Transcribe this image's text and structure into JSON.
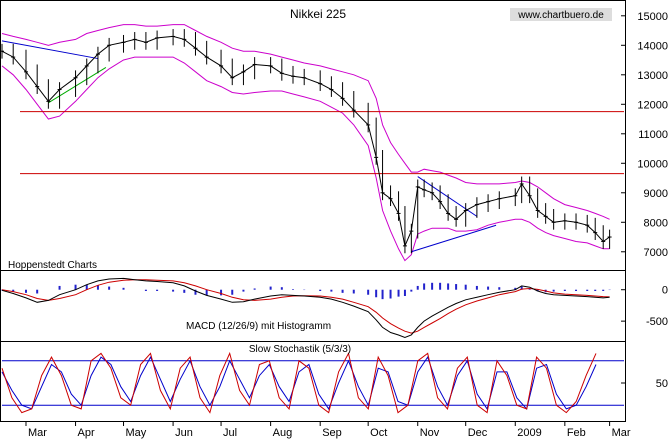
{
  "colors": {
    "price": "#000000",
    "bollinger": "#cc00cc",
    "support_line": "#cc0000",
    "trend_blue": "#0000cc",
    "trend_green": "#00aa00",
    "macd_line": "#000000",
    "macd_signal": "#cc0000",
    "macd_hist": "#2222cc",
    "stoch_k": "#cc0000",
    "stoch_d": "#0000cc",
    "stoch_bands": "#0000cc",
    "panel_border": "#000000"
  },
  "chart_data": [
    {
      "type": "line",
      "title": "Nikkei 225",
      "source": "www.chartbuero.de",
      "annotation": "Hoppenstedt Charts",
      "y_ticks": [
        7000,
        8000,
        9000,
        10000,
        11000,
        12000,
        13000,
        14000,
        15000
      ],
      "y_tick_labels": [
        "7000",
        "8000",
        "9000",
        "10000",
        "11000",
        "12000",
        "13000",
        "14000",
        "15000"
      ],
      "ylim": [
        6450,
        15400
      ],
      "x_tick_labels": [
        "Mar",
        "Apr",
        "May",
        "Jun",
        "Jul",
        "Aug",
        "Sep",
        "Oct",
        "Nov",
        "Dec",
        "2009",
        "Feb",
        "Mar"
      ],
      "x_tick_dates": [
        "2008-03-01",
        "2008-04-01",
        "2008-05-01",
        "2008-06-01",
        "2008-07-01",
        "2008-08-01",
        "2008-09-01",
        "2008-10-01",
        "2008-11-01",
        "2008-12-01",
        "2009-01-01",
        "2009-02-01",
        "2009-03-01"
      ],
      "xlim": [
        "2008-02-15",
        "2009-03-10"
      ],
      "grid": false,
      "series": [
        {
          "x": [
            "2008-02-15",
            "2008-02-22",
            "2008-03-01",
            "2008-03-08",
            "2008-03-15",
            "2008-03-22",
            "2008-04-01",
            "2008-04-08",
            "2008-04-15",
            "2008-04-22",
            "2008-05-01",
            "2008-05-08",
            "2008-05-15",
            "2008-05-22",
            "2008-06-01",
            "2008-06-08",
            "2008-06-15",
            "2008-06-22",
            "2008-07-01",
            "2008-07-08",
            "2008-07-15",
            "2008-07-22",
            "2008-08-01",
            "2008-08-08",
            "2008-08-15",
            "2008-08-22",
            "2008-09-01",
            "2008-09-08",
            "2008-09-15",
            "2008-09-22",
            "2008-10-01",
            "2008-10-06",
            "2008-10-10",
            "2008-10-15",
            "2008-10-20",
            "2008-10-24",
            "2008-10-28",
            "2008-11-01",
            "2008-11-05",
            "2008-11-10",
            "2008-11-15",
            "2008-11-20",
            "2008-11-25",
            "2008-12-01",
            "2008-12-08",
            "2008-12-15",
            "2008-12-22",
            "2009-01-01",
            "2009-01-05",
            "2009-01-10",
            "2009-01-15",
            "2009-01-20",
            "2009-01-25",
            "2009-02-01",
            "2009-02-08",
            "2009-02-15",
            "2009-02-20",
            "2009-02-25",
            "2009-03-01"
          ],
          "values": [
            13800,
            13600,
            13100,
            12600,
            12100,
            12500,
            12900,
            13300,
            13700,
            14000,
            14100,
            14200,
            14100,
            14250,
            14300,
            14200,
            13900,
            13600,
            13300,
            12900,
            13100,
            13350,
            13300,
            13050,
            12950,
            12900,
            12700,
            12500,
            12200,
            11800,
            11300,
            10200,
            9000,
            8800,
            8300,
            7200,
            7700,
            9200,
            9100,
            9000,
            8700,
            8300,
            8100,
            8400,
            8600,
            8700,
            8800,
            8900,
            9300,
            8900,
            8400,
            8200,
            8000,
            8050,
            8000,
            7900,
            7650,
            7350,
            7500
          ]
        }
      ],
      "bollinger_upper": [
        14400,
        14300,
        14200,
        14100,
        14000,
        14100,
        14200,
        14400,
        14500,
        14600,
        14700,
        14700,
        14650,
        14650,
        14700,
        14700,
        14500,
        14300,
        14100,
        13900,
        13800,
        13800,
        13700,
        13600,
        13500,
        13400,
        13300,
        13200,
        13100,
        13000,
        12800,
        12200,
        11300,
        10700,
        10300,
        10000,
        9700,
        9700,
        9800,
        9750,
        9700,
        9600,
        9500,
        9350,
        9300,
        9300,
        9300,
        9350,
        9400,
        9350,
        9200,
        9000,
        8800,
        8600,
        8500,
        8400,
        8300,
        8200,
        8100
      ],
      "bollinger_lower": [
        13300,
        13000,
        12500,
        12000,
        11500,
        11600,
        12100,
        12500,
        12900,
        13200,
        13500,
        13600,
        13600,
        13600,
        13600,
        13400,
        13100,
        12800,
        12600,
        12400,
        12350,
        12400,
        12450,
        12450,
        12350,
        12250,
        12100,
        11900,
        11700,
        11300,
        10600,
        9500,
        8400,
        7700,
        7100,
        6700,
        6900,
        7600,
        7700,
        7800,
        7800,
        7800,
        7700,
        7700,
        7750,
        7900,
        8000,
        8100,
        8100,
        8000,
        7800,
        7650,
        7550,
        7450,
        7350,
        7300,
        7200,
        7100,
        7100
      ],
      "lines": [
        {
          "name": "support-12000",
          "type": "horizontal",
          "value": 11750
        },
        {
          "name": "resistance-9600",
          "type": "horizontal",
          "value": 9650
        }
      ],
      "trendlines": [
        {
          "name": "down-trend",
          "color": "blue",
          "points": [
            [
              "2008-02-15",
              14150
            ],
            [
              "2008-04-15",
              13550
            ]
          ]
        },
        {
          "name": "up-trend",
          "color": "green",
          "points": [
            [
              "2008-03-15",
              12050
            ],
            [
              "2008-04-20",
              13250
            ]
          ]
        },
        {
          "name": "triangle-upper",
          "color": "blue",
          "points": [
            [
              "2008-11-01",
              9550
            ],
            [
              "2008-12-08",
              8200
            ]
          ]
        },
        {
          "name": "triangle-lower",
          "color": "blue",
          "points": [
            [
              "2008-10-28",
              7000
            ],
            [
              "2008-12-20",
              7900
            ]
          ]
        }
      ]
    },
    {
      "type": "line",
      "title": "MACD (12/26/9) mit Histogramm",
      "y_ticks": [
        0,
        -500
      ],
      "y_tick_labels": [
        "0",
        "-500"
      ],
      "ylim": [
        -800,
        250
      ],
      "series": [
        {
          "name": "macd",
          "values": [
            -10,
            -60,
            -130,
            -200,
            -170,
            -80,
            0,
            80,
            140,
            170,
            180,
            160,
            140,
            130,
            110,
            60,
            -20,
            -90,
            -150,
            -200,
            -190,
            -150,
            -100,
            -80,
            -90,
            -100,
            -120,
            -150,
            -200,
            -260,
            -350,
            -480,
            -600,
            -680,
            -720,
            -760,
            -720,
            -600,
            -500,
            -420,
            -350,
            -280,
            -220,
            -160,
            -120,
            -80,
            -40,
            0,
            60,
            40,
            -20,
            -60,
            -80,
            -90,
            -100,
            -110,
            -120,
            -130,
            -120
          ]
        },
        {
          "name": "signal",
          "values": [
            0,
            -30,
            -80,
            -140,
            -170,
            -140,
            -80,
            0,
            70,
            120,
            150,
            160,
            160,
            150,
            140,
            110,
            60,
            0,
            -60,
            -120,
            -160,
            -170,
            -150,
            -120,
            -100,
            -95,
            -100,
            -120,
            -150,
            -200,
            -270,
            -360,
            -450,
            -540,
            -610,
            -660,
            -690,
            -660,
            -600,
            -530,
            -460,
            -380,
            -310,
            -240,
            -180,
            -130,
            -80,
            -30,
            10,
            20,
            5,
            -20,
            -50,
            -70,
            -80,
            -90,
            -100,
            -110,
            -115
          ]
        },
        {
          "name": "histogram",
          "values": [
            -10,
            -30,
            -50,
            -60,
            0,
            60,
            80,
            80,
            70,
            50,
            30,
            0,
            -20,
            -20,
            -30,
            -50,
            -80,
            -90,
            -90,
            -80,
            -30,
            20,
            50,
            40,
            10,
            -5,
            -20,
            -30,
            -50,
            -60,
            -80,
            -120,
            -150,
            -140,
            -110,
            -100,
            -30,
            60,
            100,
            110,
            110,
            100,
            90,
            80,
            60,
            50,
            40,
            30,
            50,
            20,
            -25,
            -40,
            -30,
            -20,
            -20,
            -20,
            -20,
            -20,
            -5
          ]
        }
      ]
    },
    {
      "type": "line",
      "title": "Slow Stochastik (5/3/3)",
      "y_ticks": [
        50
      ],
      "y_tick_labels": [
        "50"
      ],
      "ylim": [
        0,
        100
      ],
      "bands": [
        80,
        20
      ],
      "series": [
        {
          "name": "%K",
          "values": [
            70,
            30,
            10,
            15,
            60,
            85,
            60,
            20,
            15,
            80,
            90,
            70,
            30,
            20,
            75,
            90,
            40,
            15,
            70,
            85,
            30,
            10,
            60,
            90,
            40,
            20,
            75,
            80,
            30,
            15,
            80,
            70,
            20,
            10,
            65,
            90,
            30,
            15,
            85,
            60,
            10,
            20,
            80,
            90,
            30,
            15,
            70,
            85,
            20,
            10,
            80,
            60,
            20,
            15,
            85,
            70,
            20,
            10,
            25,
            60,
            90
          ]
        },
        {
          "name": "%D",
          "values": [
            65,
            40,
            20,
            15,
            45,
            75,
            65,
            35,
            20,
            60,
            85,
            75,
            45,
            25,
            60,
            85,
            55,
            25,
            55,
            80,
            45,
            20,
            45,
            80,
            55,
            30,
            60,
            75,
            45,
            25,
            65,
            75,
            35,
            15,
            50,
            80,
            45,
            20,
            70,
            65,
            25,
            20,
            65,
            85,
            45,
            20,
            60,
            80,
            35,
            15,
            65,
            65,
            30,
            15,
            70,
            75,
            35,
            15,
            20,
            45,
            75
          ]
        }
      ]
    }
  ]
}
